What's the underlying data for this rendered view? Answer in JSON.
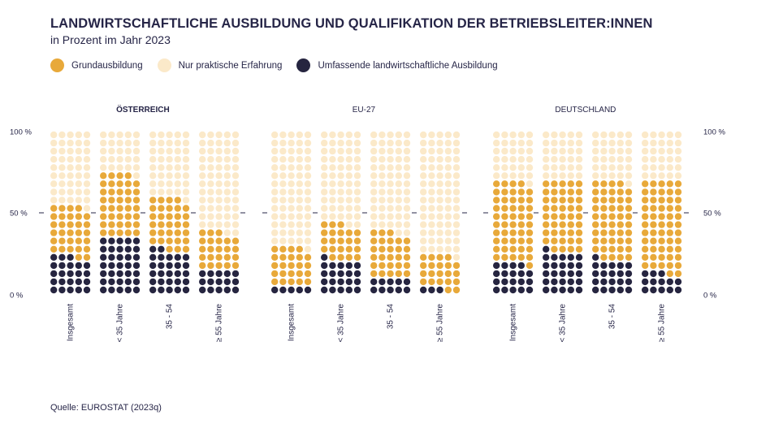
{
  "title": "LANDWIRTSCHAFTLICHE AUSBILDUNG UND QUALIFIKATION DER BETRIEBSLEITER:INNEN",
  "subtitle": "in Prozent im Jahr 2023",
  "source": "Quelle: EUROSTAT (2023q)",
  "colors": {
    "grund": "#e8a93a",
    "praktisch": "#fbe9c9",
    "umfassend": "#262540"
  },
  "legend": [
    {
      "key": "grund",
      "label": "Grundausbildung"
    },
    {
      "key": "praktisch",
      "label": "Nur praktische Erfahrung"
    },
    {
      "key": "umfassend",
      "label": "Umfassende landwirtschaftliche Ausbildung"
    }
  ],
  "chart_data": {
    "type": "waffle",
    "y_ticks": [
      "100 %",
      "50 %",
      "0 %"
    ],
    "units": "percent",
    "groups": [
      {
        "name": "ÖSTERREICH",
        "bold": true,
        "categories": [
          {
            "label": "Insgesamt",
            "umfassend": 23,
            "grund": 31,
            "praktisch": 46
          },
          {
            "label": "< 35 Jahre",
            "umfassend": 35,
            "grund": 39,
            "praktisch": 26
          },
          {
            "label": "35 - 54",
            "umfassend": 27,
            "grund": 32,
            "praktisch": 41
          },
          {
            "label": "≥ 55 Jahre",
            "umfassend": 15,
            "grund": 23,
            "praktisch": 62
          }
        ]
      },
      {
        "name": "EU-27",
        "bold": false,
        "categories": [
          {
            "label": "Insgesamt",
            "umfassend": 5,
            "grund": 24,
            "praktisch": 71
          },
          {
            "label": "< 35 Jahre",
            "umfassend": 21,
            "grund": 22,
            "praktisch": 57
          },
          {
            "label": "35 - 54",
            "umfassend": 10,
            "grund": 28,
            "praktisch": 62
          },
          {
            "label": "≥ 55 Jahre",
            "umfassend": 3,
            "grund": 21,
            "praktisch": 76
          }
        ]
      },
      {
        "name": "DEUTSCHLAND",
        "bold": false,
        "categories": [
          {
            "label": "Insgesamt",
            "umfassend": 19,
            "grund": 50,
            "praktisch": 31
          },
          {
            "label": "< 35 Jahre",
            "umfassend": 26,
            "grund": 44,
            "praktisch": 30
          },
          {
            "label": "35 - 54",
            "umfassend": 21,
            "grund": 48,
            "praktisch": 31
          },
          {
            "label": "≥ 55 Jahre",
            "umfassend": 13,
            "grund": 57,
            "praktisch": 30
          }
        ]
      }
    ]
  }
}
